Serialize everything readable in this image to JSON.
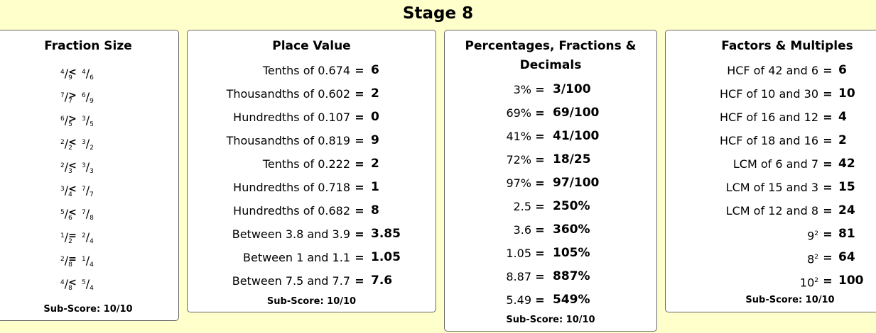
{
  "stage_title": "Stage 8",
  "fraction_panel": {
    "title": "Fraction Size",
    "rows": [
      {
        "ln": "4",
        "ld": "9",
        "op": "<",
        "rn": "4",
        "rd": "6"
      },
      {
        "ln": "7",
        "ld": "7",
        "op": ">",
        "rn": "6",
        "rd": "9"
      },
      {
        "ln": "6",
        "ld": "5",
        "op": ">",
        "rn": "3",
        "rd": "5"
      },
      {
        "ln": "2",
        "ld": "2",
        "op": "<",
        "rn": "3",
        "rd": "2"
      },
      {
        "ln": "2",
        "ld": "3",
        "op": "<",
        "rn": "3",
        "rd": "3"
      },
      {
        "ln": "3",
        "ld": "4",
        "op": "<",
        "rn": "7",
        "rd": "7"
      },
      {
        "ln": "5",
        "ld": "6",
        "op": "<",
        "rn": "7",
        "rd": "8"
      },
      {
        "ln": "1",
        "ld": "2",
        "op": "=",
        "rn": "2",
        "rd": "4"
      },
      {
        "ln": "2",
        "ld": "8",
        "op": "=",
        "rn": "1",
        "rd": "4"
      },
      {
        "ln": "4",
        "ld": "8",
        "op": "<",
        "rn": "5",
        "rd": "4"
      }
    ],
    "subscore": "Sub-Score: 10/10"
  },
  "place_panel": {
    "title": "Place Value",
    "rows": [
      {
        "q": "Tenths of 0.674",
        "eq": "=",
        "a": "6"
      },
      {
        "q": "Thousandths of 0.602",
        "eq": "=",
        "a": "2"
      },
      {
        "q": "Hundredths of 0.107",
        "eq": "=",
        "a": "0"
      },
      {
        "q": "Thousandths of 0.819",
        "eq": "=",
        "a": "9"
      },
      {
        "q": "Tenths of 0.222",
        "eq": "=",
        "a": "2"
      },
      {
        "q": "Hundredths of 0.718",
        "eq": "=",
        "a": "1"
      },
      {
        "q": "Hundredths of 0.682",
        "eq": "=",
        "a": "8"
      },
      {
        "q": "Between 3.8 and 3.9",
        "eq": "=",
        "a": "3.85"
      },
      {
        "q": "Between 1 and 1.1",
        "eq": "=",
        "a": "1.05"
      },
      {
        "q": "Between 7.5 and 7.7",
        "eq": "=",
        "a": "7.6"
      }
    ],
    "subscore": "Sub-Score: 10/10"
  },
  "pfd_panel": {
    "title_line1": "Percentages, Fractions &",
    "title_line2": "Decimals",
    "rows": [
      {
        "q": "3%",
        "eq": "=",
        "a": "3/100"
      },
      {
        "q": "69%",
        "eq": "=",
        "a": "69/100"
      },
      {
        "q": "41%",
        "eq": "=",
        "a": "41/100"
      },
      {
        "q": "72%",
        "eq": "=",
        "a": "18/25"
      },
      {
        "q": "97%",
        "eq": "=",
        "a": "97/100"
      },
      {
        "q": "2.5",
        "eq": "=",
        "a": "250%"
      },
      {
        "q": "3.6",
        "eq": "=",
        "a": "360%"
      },
      {
        "q": "1.05",
        "eq": "=",
        "a": "105%"
      },
      {
        "q": "8.87",
        "eq": "=",
        "a": "887%"
      },
      {
        "q": "5.49",
        "eq": "=",
        "a": "549%"
      }
    ],
    "subscore": "Sub-Score: 10/10"
  },
  "factors_panel": {
    "title": "Factors & Multiples",
    "rows": [
      {
        "q": "HCF of 42 and 6",
        "exp": "",
        "eq": "=",
        "a": "6"
      },
      {
        "q": "HCF of 10 and 30",
        "exp": "",
        "eq": "=",
        "a": "10"
      },
      {
        "q": "HCF of 16 and 12",
        "exp": "",
        "eq": "=",
        "a": "4"
      },
      {
        "q": "HCF of 18 and 16",
        "exp": "",
        "eq": "=",
        "a": "2"
      },
      {
        "q": "LCM of 6 and 7",
        "exp": "",
        "eq": "=",
        "a": "42"
      },
      {
        "q": "LCM of 15 and 3",
        "exp": "",
        "eq": "=",
        "a": "15"
      },
      {
        "q": "LCM of 12 and 8",
        "exp": "",
        "eq": "=",
        "a": "24"
      },
      {
        "q": "9",
        "exp": "2",
        "eq": "=",
        "a": "81"
      },
      {
        "q": "8",
        "exp": "2",
        "eq": "=",
        "a": "64"
      },
      {
        "q": "10",
        "exp": "2",
        "eq": "=",
        "a": "100"
      }
    ],
    "subscore": "Sub-Score: 10/10"
  }
}
